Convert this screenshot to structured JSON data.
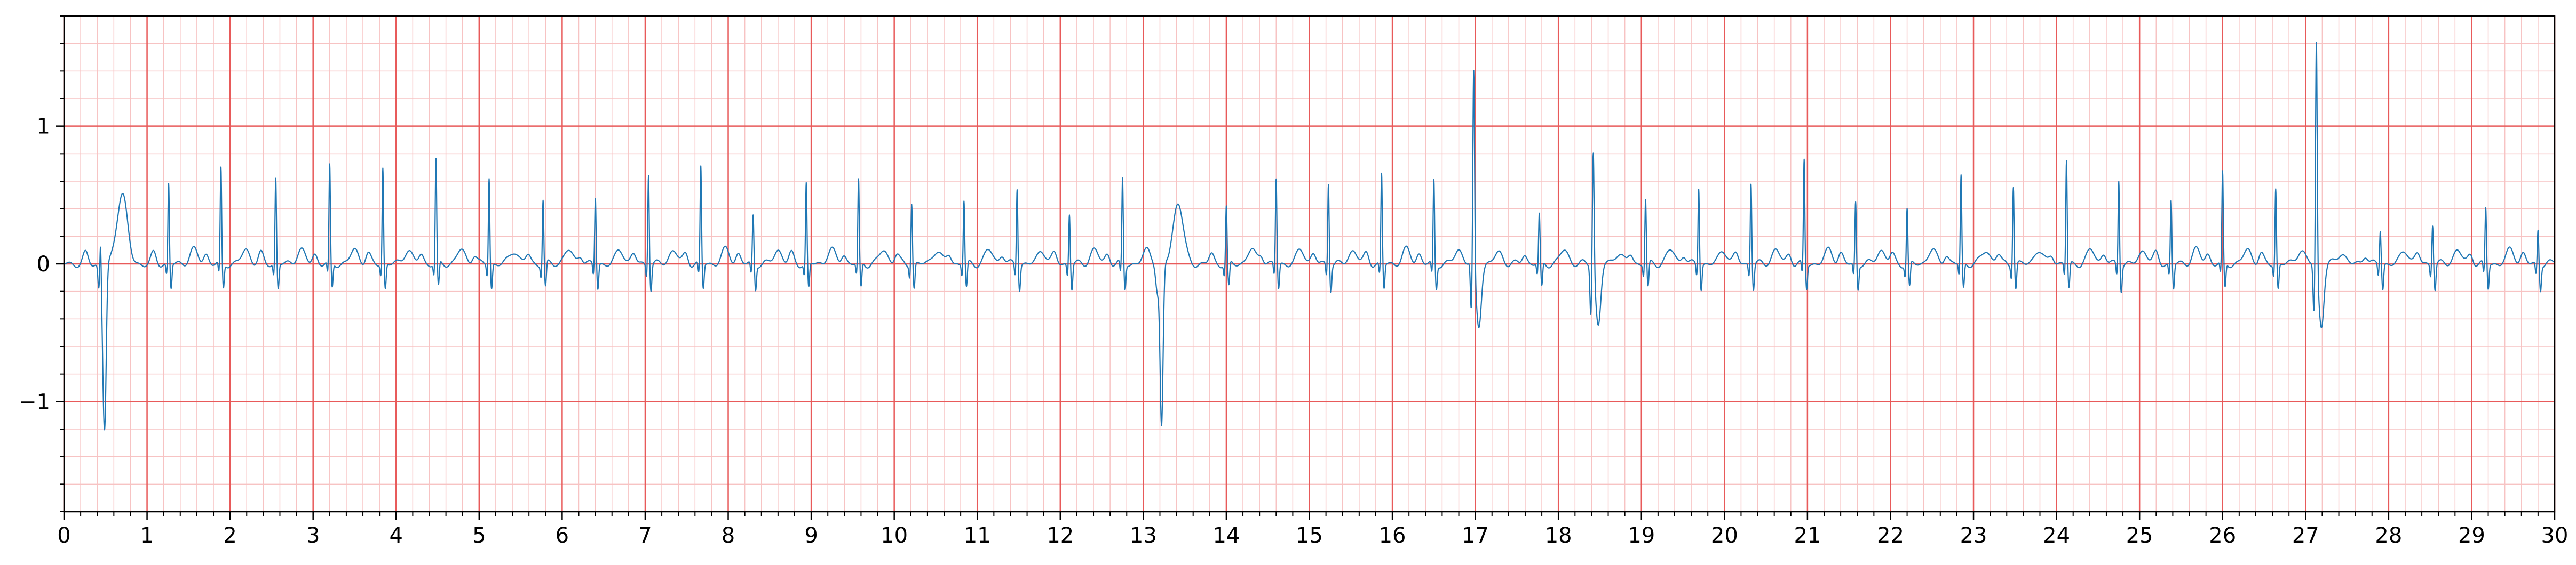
{
  "chart_data": {
    "type": "line",
    "title": "",
    "xlabel": "",
    "ylabel": "",
    "xlim": [
      0,
      30
    ],
    "ylim": [
      -1.8,
      1.8
    ],
    "x_ticks": [
      "0",
      "1",
      "2",
      "3",
      "4",
      "5",
      "6",
      "7",
      "8",
      "9",
      "10",
      "11",
      "12",
      "13",
      "14",
      "15",
      "16",
      "17",
      "18",
      "19",
      "20",
      "21",
      "22",
      "23",
      "24",
      "25",
      "26",
      "27",
      "28",
      "29",
      "30"
    ],
    "y_ticks": [
      {
        "value": 1,
        "label": "1"
      },
      {
        "value": 0,
        "label": "0"
      },
      {
        "value": -1,
        "label": "−1"
      }
    ],
    "grid": {
      "major": true,
      "minor": true,
      "major_x_step": 1,
      "minor_x_step": 0.2,
      "major_y_step": 1,
      "minor_y_step": 0.2
    },
    "colors": {
      "major_grid": "#e85a5a",
      "minor_grid": "#f7c3c3",
      "trace": "#1f77b4",
      "axis": "#000000"
    },
    "series": [
      {
        "peaks": [
          {
            "t": 0.44,
            "amp": 0.35,
            "kind": "normal"
          },
          {
            "t": 0.49,
            "amp": -1.16,
            "kind": "pvc"
          },
          {
            "t": 1.26,
            "amp": 0.58,
            "kind": "normal"
          },
          {
            "t": 1.89,
            "amp": 0.68,
            "kind": "normal"
          },
          {
            "t": 2.55,
            "amp": 0.62,
            "kind": "normal"
          },
          {
            "t": 3.2,
            "amp": 0.7,
            "kind": "normal"
          },
          {
            "t": 3.84,
            "amp": 0.7,
            "kind": "normal"
          },
          {
            "t": 4.48,
            "amp": 0.75,
            "kind": "normal"
          },
          {
            "t": 5.12,
            "amp": 0.63,
            "kind": "normal"
          },
          {
            "t": 5.77,
            "amp": 0.47,
            "kind": "normal"
          },
          {
            "t": 6.4,
            "amp": 0.48,
            "kind": "normal"
          },
          {
            "t": 7.04,
            "amp": 0.67,
            "kind": "normal"
          },
          {
            "t": 7.67,
            "amp": 0.7,
            "kind": "normal"
          },
          {
            "t": 8.3,
            "amp": 0.35,
            "kind": "normal"
          },
          {
            "t": 8.94,
            "amp": 0.58,
            "kind": "normal"
          },
          {
            "t": 9.57,
            "amp": 0.6,
            "kind": "normal"
          },
          {
            "t": 10.21,
            "amp": 0.45,
            "kind": "normal"
          },
          {
            "t": 10.84,
            "amp": 0.46,
            "kind": "normal"
          },
          {
            "t": 11.48,
            "amp": 0.56,
            "kind": "normal"
          },
          {
            "t": 12.11,
            "amp": 0.37,
            "kind": "normal"
          },
          {
            "t": 12.75,
            "amp": 0.61,
            "kind": "normal"
          },
          {
            "t": 13.22,
            "amp": -1.19,
            "kind": "pvc"
          },
          {
            "t": 14.0,
            "amp": 0.41,
            "kind": "normal"
          },
          {
            "t": 14.6,
            "amp": 0.62,
            "kind": "normal"
          },
          {
            "t": 15.23,
            "amp": 0.6,
            "kind": "normal"
          },
          {
            "t": 15.87,
            "amp": 0.65,
            "kind": "normal"
          },
          {
            "t": 16.5,
            "amp": 0.6,
            "kind": "normal"
          },
          {
            "t": 16.98,
            "amp": 1.44,
            "kind": "ectopic"
          },
          {
            "t": 17.77,
            "amp": 0.35,
            "kind": "normal"
          },
          {
            "t": 18.42,
            "amp": 0.88,
            "kind": "ectopic"
          },
          {
            "t": 19.05,
            "amp": 0.47,
            "kind": "normal"
          },
          {
            "t": 19.69,
            "amp": 0.56,
            "kind": "normal"
          },
          {
            "t": 20.32,
            "amp": 0.6,
            "kind": "normal"
          },
          {
            "t": 20.96,
            "amp": 0.75,
            "kind": "normal"
          },
          {
            "t": 21.58,
            "amp": 0.45,
            "kind": "normal"
          },
          {
            "t": 22.2,
            "amp": 0.4,
            "kind": "normal"
          },
          {
            "t": 22.85,
            "amp": 0.64,
            "kind": "normal"
          },
          {
            "t": 23.48,
            "amp": 0.58,
            "kind": "normal"
          },
          {
            "t": 24.12,
            "amp": 0.75,
            "kind": "normal"
          },
          {
            "t": 24.75,
            "amp": 0.62,
            "kind": "normal"
          },
          {
            "t": 25.38,
            "amp": 0.46,
            "kind": "normal"
          },
          {
            "t": 26.0,
            "amp": 0.65,
            "kind": "normal"
          },
          {
            "t": 26.64,
            "amp": 0.55,
            "kind": "normal"
          },
          {
            "t": 27.13,
            "amp": 1.67,
            "kind": "ectopic"
          },
          {
            "t": 27.9,
            "amp": 0.25,
            "kind": "normal"
          },
          {
            "t": 28.53,
            "amp": 0.3,
            "kind": "normal"
          },
          {
            "t": 29.17,
            "amp": 0.4,
            "kind": "normal"
          },
          {
            "t": 29.8,
            "amp": 0.25,
            "kind": "normal"
          }
        ]
      }
    ]
  }
}
